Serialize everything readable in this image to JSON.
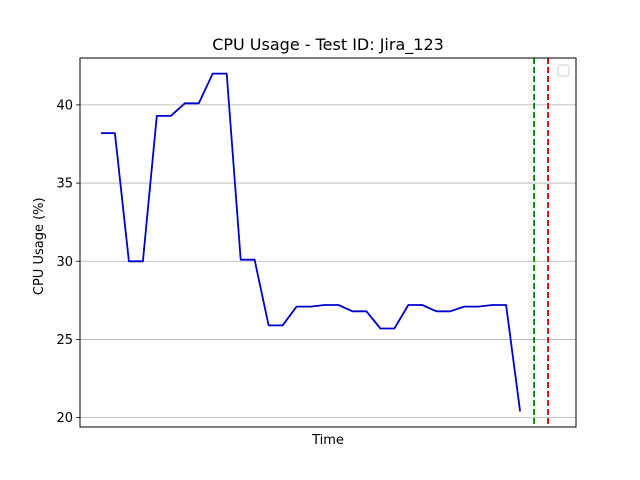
{
  "chart_data": {
    "type": "line",
    "title": "CPU Usage - Test ID: Jira_123",
    "xlabel": "Time",
    "ylabel": "CPU Usage (%)",
    "ylim": [
      19.4,
      43.0
    ],
    "xlim": [
      -1.5,
      34.0
    ],
    "yticks": [
      20,
      25,
      30,
      35,
      40
    ],
    "grid": "y",
    "legend": {
      "position": "top-right",
      "entries": []
    },
    "series": [
      {
        "color": "#0000cc",
        "x": [
          0,
          1,
          2,
          3,
          4,
          5,
          6,
          7,
          8,
          9,
          10,
          11,
          12,
          13,
          14,
          15,
          16,
          17,
          18,
          19,
          20,
          21,
          22,
          23,
          24,
          25,
          26,
          27,
          28,
          29,
          30
        ],
        "values": [
          38.2,
          38.2,
          30.0,
          30.0,
          39.3,
          39.3,
          40.1,
          40.1,
          42.0,
          42.0,
          30.1,
          30.1,
          25.9,
          25.9,
          27.1,
          27.1,
          27.2,
          27.2,
          26.8,
          26.8,
          25.7,
          25.7,
          27.2,
          27.2,
          26.8,
          26.8,
          27.1,
          27.1,
          27.2,
          27.2,
          20.4
        ]
      }
    ],
    "vlines": [
      {
        "x": 31.0,
        "color": "#008000",
        "style": "dashed"
      },
      {
        "x": 32.0,
        "color": "#cc0000",
        "style": "dashed"
      }
    ]
  }
}
